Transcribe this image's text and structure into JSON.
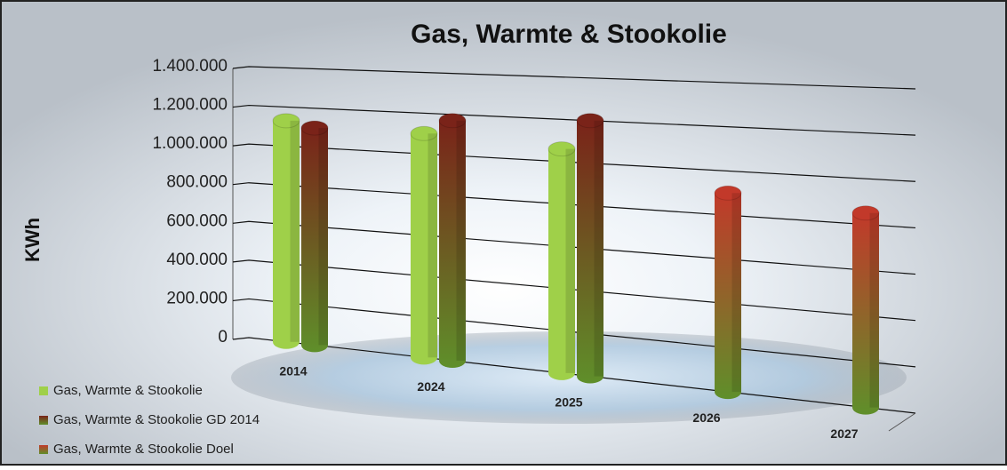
{
  "chart_data": {
    "type": "bar",
    "title": "Gas, Warmte & Stookolie",
    "y_label": "KWh",
    "categories": [
      "2014",
      "2024",
      "2025",
      "2026",
      "2027"
    ],
    "series": [
      {
        "name": "Gas, Warmte & Stookolie",
        "color": "#9fd049",
        "values": [
          1130000,
          1100000,
          1060000,
          null,
          null
        ]
      },
      {
        "name": "Gas, Warmte & Stookolie GD 2014",
        "color": "#7a2319",
        "values": [
          1100000,
          1170000,
          1200000,
          null,
          null
        ]
      },
      {
        "name": "Gas, Warmte & Stookolie Doel",
        "color": "#c2392a",
        "values": [
          null,
          null,
          null,
          900000,
          850000
        ]
      }
    ],
    "ylim": [
      0,
      1400000
    ],
    "yticks": [
      0,
      {
        "value": 200000,
        "label": "200.000"
      },
      {
        "value": 400000,
        "label": "400.000"
      },
      {
        "value": 600000,
        "label": "600.000"
      },
      {
        "value": 800000,
        "label": "800.000"
      },
      {
        "value": 1000000,
        "label": "1.000.000"
      },
      {
        "value": 1200000,
        "label": "1.200.000"
      },
      {
        "value": 1400000,
        "label": "1.400.000"
      }
    ],
    "grid": true
  }
}
